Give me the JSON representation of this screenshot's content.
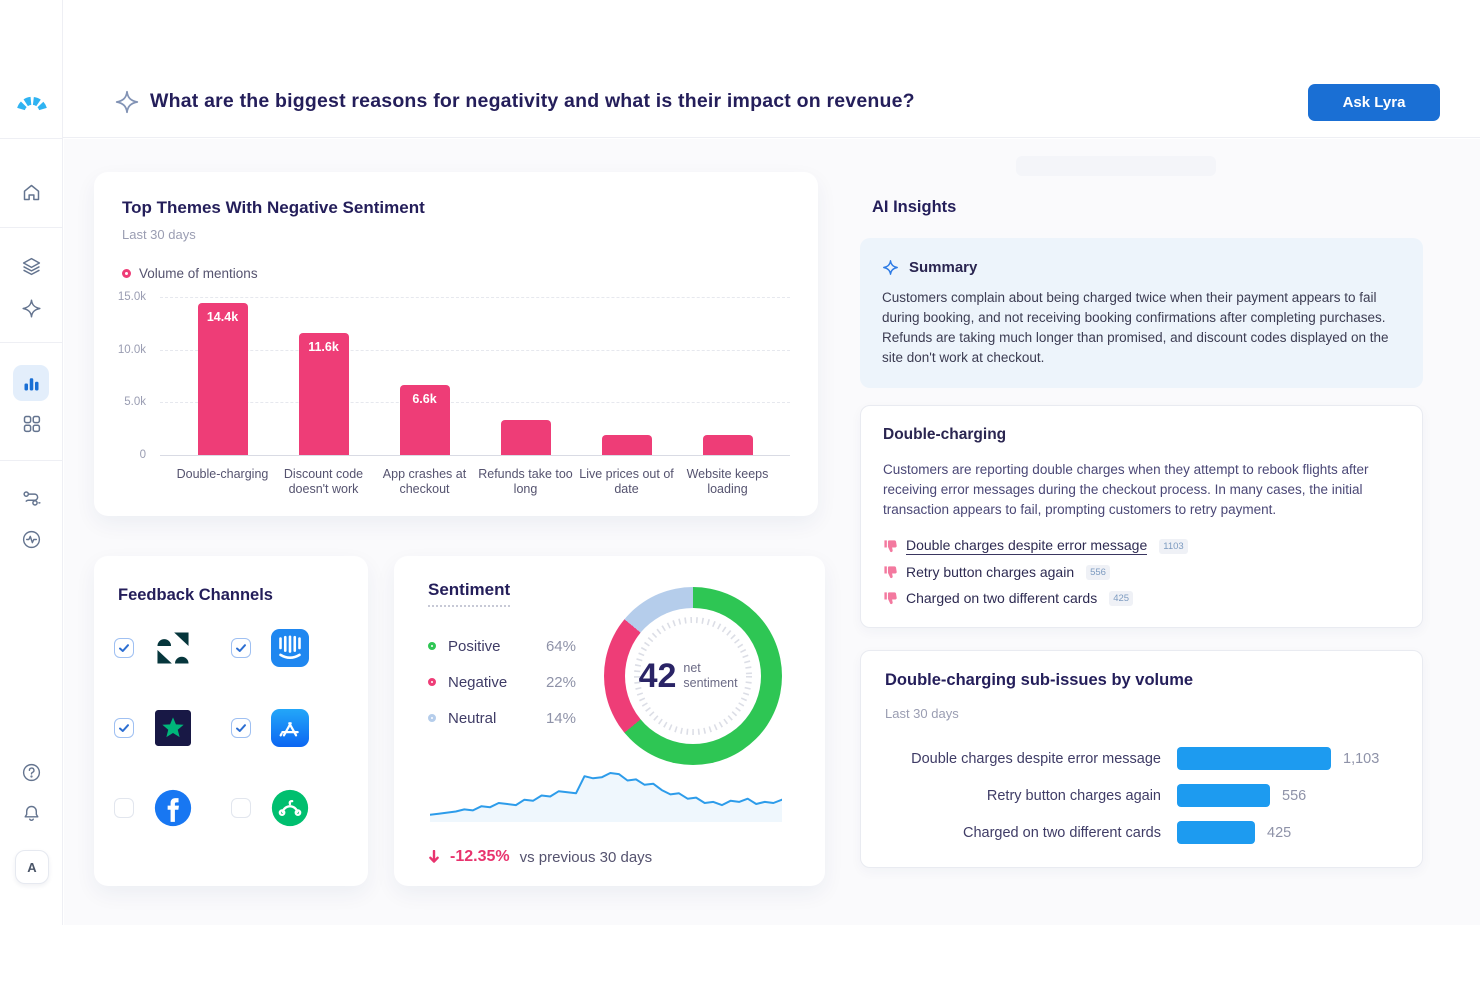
{
  "header": {
    "question": "What are the biggest reasons for negativity and what is their impact on revenue?",
    "ask_button_label": "Ask Lyra",
    "accent_color": "#1A6FD4"
  },
  "sidebar": {
    "active_item": "analytics",
    "items": [
      {
        "name": "home",
        "icon": "home-icon"
      },
      {
        "name": "data",
        "icon": "layers-icon"
      },
      {
        "name": "assistant",
        "icon": "sparkle-icon"
      },
      {
        "name": "analytics",
        "icon": "bar-chart-icon",
        "active": true
      },
      {
        "name": "apps",
        "icon": "grid-icon"
      },
      {
        "name": "workflows",
        "icon": "flow-icon"
      },
      {
        "name": "monitoring",
        "icon": "pulse-icon"
      },
      {
        "name": "help",
        "icon": "question-circle-icon"
      },
      {
        "name": "notifications",
        "icon": "bell-icon"
      }
    ],
    "avatar_label": "A"
  },
  "themes_card": {
    "title": "Top Themes With Negative Sentiment",
    "subtitle": "Last 30 days",
    "legend_label": "Volume of mentions"
  },
  "channels_card": {
    "title": "Feedback Channels",
    "items": [
      {
        "name": "Zendesk",
        "checked": true
      },
      {
        "name": "Intercom",
        "checked": true
      },
      {
        "name": "Trustpilot",
        "checked": true
      },
      {
        "name": "App Store",
        "checked": true
      },
      {
        "name": "Facebook",
        "checked": false
      },
      {
        "name": "SurveyMonkey",
        "checked": false
      }
    ]
  },
  "sentiment_card": {
    "title": "Sentiment",
    "legend": [
      {
        "label": "Positive",
        "value": "64%",
        "color": "#2EC654"
      },
      {
        "label": "Negative",
        "value": "22%",
        "color": "#EE3D77"
      },
      {
        "label": "Neutral",
        "value": "14%",
        "color": "#B5CDEB"
      }
    ],
    "net_value": "42",
    "net_label": "net sentiment",
    "delta": "-12.35%",
    "delta_caption": "vs previous 30 days"
  },
  "insights": {
    "title": "AI Insights",
    "summary": {
      "title": "Summary",
      "text": "Customers complain about being charged twice when their payment appears to fail during booking, and not receiving booking confirmations after completing purchases. Refunds are taking much longer than promised, and discount codes displayed on the site don't work at checkout."
    },
    "issue": {
      "title": "Double-charging",
      "text": "Customers are reporting double charges when they attempt to rebook flights after receiving error messages during the checkout process. In many cases, the initial transaction appears to fail, prompting customers to retry payment.",
      "sub_issues": [
        {
          "label": "Double charges despite error message",
          "count": "1103"
        },
        {
          "label": "Retry button charges again",
          "count": "556"
        },
        {
          "label": "Charged on two different cards",
          "count": "425"
        }
      ]
    }
  },
  "chart_data": [
    {
      "id": "negative-themes",
      "type": "bar",
      "title": "Top Themes With Negative Sentiment",
      "subtitle": "Last 30 days",
      "legend": [
        "Volume of mentions"
      ],
      "categories": [
        "Double-charging",
        "Discount code doesn't work",
        "App crashes at checkout",
        "Refunds take too long",
        "Live prices out of date",
        "Website keeps loading"
      ],
      "values": [
        14400,
        11600,
        6600,
        3300,
        1900,
        1900
      ],
      "bar_labels": [
        "14.4k",
        "11.6k",
        "6.6k",
        "",
        "",
        ""
      ],
      "y_ticks": [
        "15.0k",
        "10.0k",
        "5.0k",
        "0"
      ],
      "ylim": [
        0,
        15000
      ],
      "bar_color": "#EE3D77",
      "grid": "horizontal-dashed"
    },
    {
      "id": "sentiment-donut",
      "type": "pie",
      "labels": [
        "Positive",
        "Negative",
        "Neutral"
      ],
      "values": [
        64,
        22,
        14
      ],
      "colors": [
        "#2EC654",
        "#EE3D77",
        "#B5CDEB"
      ],
      "center_value": "42",
      "center_label": "net sentiment",
      "start_angle": "top",
      "direction": "clockwise"
    },
    {
      "id": "sentiment-trend",
      "type": "line",
      "color": "#2D9CEA",
      "values": [
        4,
        5,
        6,
        7,
        9,
        8,
        12,
        11,
        15,
        14,
        13,
        18,
        17,
        22,
        21,
        26,
        25,
        24,
        40,
        38,
        39,
        43,
        42,
        36,
        37,
        32,
        33,
        27,
        23,
        24,
        19,
        20,
        15,
        16,
        13,
        17,
        16,
        19,
        14,
        16,
        15,
        18
      ],
      "footer_delta": "-12.35%",
      "footer_caption": "vs previous 30 days"
    },
    {
      "id": "double-charging-subissues",
      "type": "bar",
      "orientation": "horizontal",
      "title": "Double-charging sub-issues by volume",
      "subtitle": "Last 30 days",
      "categories": [
        "Double charges despite error message",
        "Retry button charges again",
        "Charged on two different cards"
      ],
      "values": [
        1103,
        556,
        425
      ],
      "value_labels": [
        "1,103",
        "556",
        "425"
      ],
      "bar_color": "#1D9BF0"
    }
  ]
}
